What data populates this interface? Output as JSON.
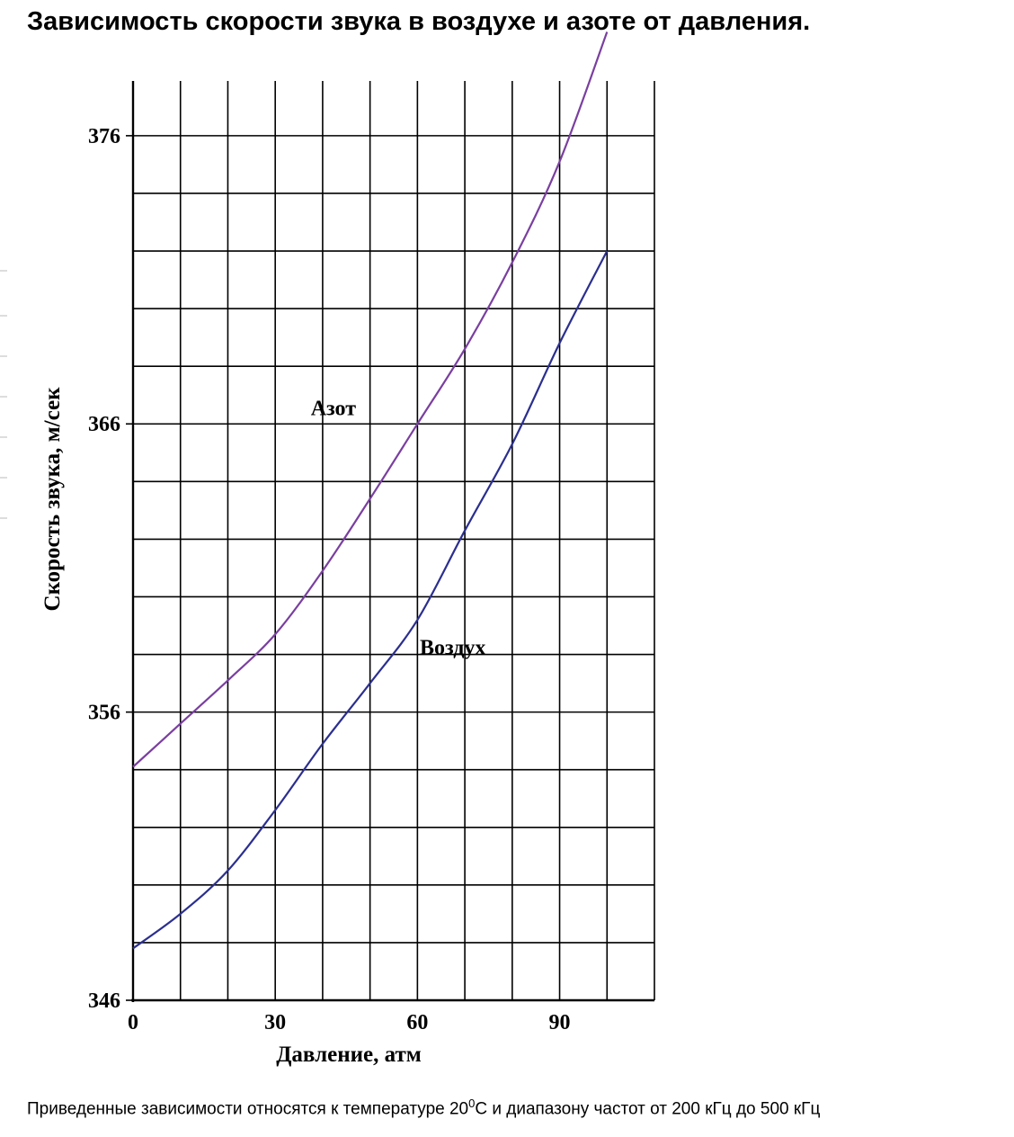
{
  "title": "Зависимость скорости звука в воздухе и азоте от давления.",
  "footnote": {
    "before": "Приведенные зависимости относятся к температуре 20",
    "sup": "0",
    "after": "С и диапазону частот от 200 кГц до 500 кГц"
  },
  "chart_data": {
    "type": "line",
    "xlabel": "Давление, атм",
    "ylabel": "Скорость звука, м/сек",
    "xlim": [
      0,
      110
    ],
    "ylim": [
      346,
      377.9
    ],
    "x_ticks": [
      0,
      30,
      60,
      90
    ],
    "x_tick_labels": [
      "0",
      "30",
      "60",
      "90"
    ],
    "y_ticks": [
      346,
      356,
      366,
      376
    ],
    "y_tick_labels": [
      "346",
      "356",
      "366",
      "376"
    ],
    "grid": true,
    "legend": "none",
    "series": [
      {
        "name": "Азот",
        "color": "#7a3fa0",
        "x": [
          0,
          10,
          20,
          30,
          40,
          50,
          60,
          70,
          80,
          90,
          100
        ],
        "y": [
          354.1,
          355.6,
          357.1,
          358.7,
          360.9,
          363.4,
          366.0,
          368.6,
          371.6,
          375.1,
          379.6
        ]
      },
      {
        "name": "Воздух",
        "color": "#2b2f8f",
        "x": [
          0,
          10,
          20,
          30,
          40,
          50,
          60,
          70,
          80,
          90,
          100
        ],
        "y": [
          347.8,
          349.0,
          350.5,
          352.6,
          354.9,
          357.0,
          359.2,
          362.3,
          365.3,
          368.8,
          372.0
        ]
      }
    ],
    "annotations": [
      {
        "text": "Азот",
        "x": 37.5,
        "y": 366.3
      },
      {
        "text": "Воздух",
        "x": 60.5,
        "y": 358.0
      }
    ]
  }
}
